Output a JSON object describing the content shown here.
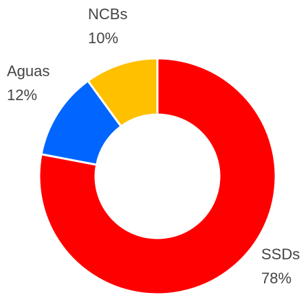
{
  "chart_data": {
    "type": "donut",
    "categories": [
      "SSDs",
      "Aguas",
      "NCBs"
    ],
    "values": [
      78,
      12,
      10
    ],
    "value_labels": [
      "78%",
      "12%",
      "10%"
    ],
    "colors": [
      "#ff0000",
      "#0066ff",
      "#ffc000"
    ]
  }
}
